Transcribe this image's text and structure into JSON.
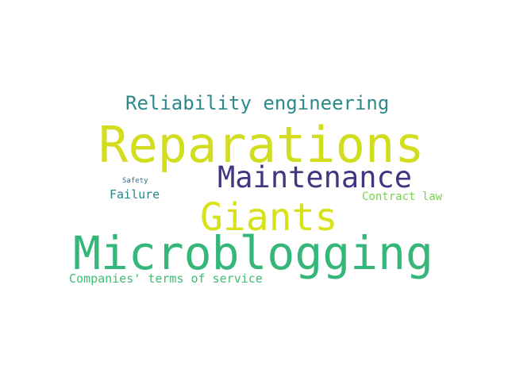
{
  "word_cloud": {
    "words": [
      {
        "id": "reliability",
        "text": "Reliability engineering",
        "color": "#2c8a8a"
      },
      {
        "id": "reparations",
        "text": "Reparations",
        "color": "#d2dd1f"
      },
      {
        "id": "maintenance",
        "text": "Maintenance",
        "color": "#453581"
      },
      {
        "id": "safety",
        "text": "Safety",
        "color": "#2c718e"
      },
      {
        "id": "failure",
        "text": "Failure",
        "color": "#25858e"
      },
      {
        "id": "contract",
        "text": "Contract law",
        "color": "#7ad151"
      },
      {
        "id": "giants",
        "text": "Giants",
        "color": "#d8e219"
      },
      {
        "id": "microblogging",
        "text": "Microblogging",
        "color": "#35b779"
      },
      {
        "id": "companies",
        "text": "Companies' terms of service",
        "color": "#3fbc73"
      }
    ]
  }
}
